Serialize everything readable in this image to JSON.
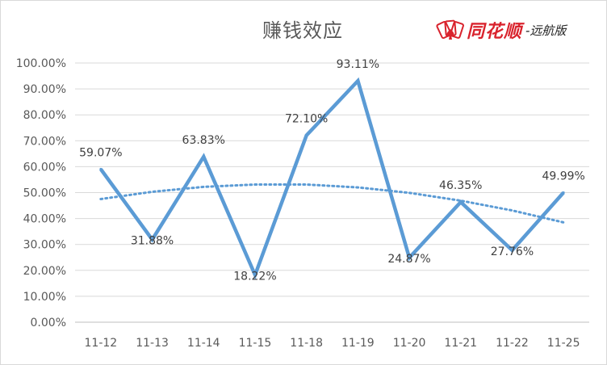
{
  "chart_data": {
    "type": "line",
    "title": "赚钱效应",
    "categories": [
      "11-12",
      "11-13",
      "11-14",
      "11-15",
      "11-18",
      "11-19",
      "11-20",
      "11-21",
      "11-22",
      "11-25"
    ],
    "series": [
      {
        "values": [
          59.07,
          31.88,
          63.83,
          18.22,
          72.1,
          93.11,
          24.87,
          46.35,
          27.76,
          49.99
        ],
        "labels": [
          "59.07%",
          "31.88%",
          "63.83%",
          "18.22%",
          "72.10%",
          "93.11%",
          "24.87%",
          "46.35%",
          "27.76%",
          "49.99%"
        ],
        "color": "#5b9bd5"
      }
    ],
    "trendline": {
      "type": "polynomial",
      "style": "dotted",
      "color": "#5b9bd5",
      "values": [
        47.5,
        50.3,
        52.2,
        53.1,
        53.1,
        52.0,
        49.9,
        46.9,
        43.1,
        38.5
      ]
    },
    "yticks": [
      "0.00%",
      "10.00%",
      "20.00%",
      "30.00%",
      "40.00%",
      "50.00%",
      "60.00%",
      "70.00%",
      "80.00%",
      "90.00%",
      "100.00%"
    ],
    "ylim": [
      0,
      100
    ],
    "grid": true,
    "legend": "none"
  },
  "logo": {
    "brand": "同花顺",
    "sub": "-远航版",
    "icon": "card-fan-icon",
    "color": "#d9232d"
  }
}
